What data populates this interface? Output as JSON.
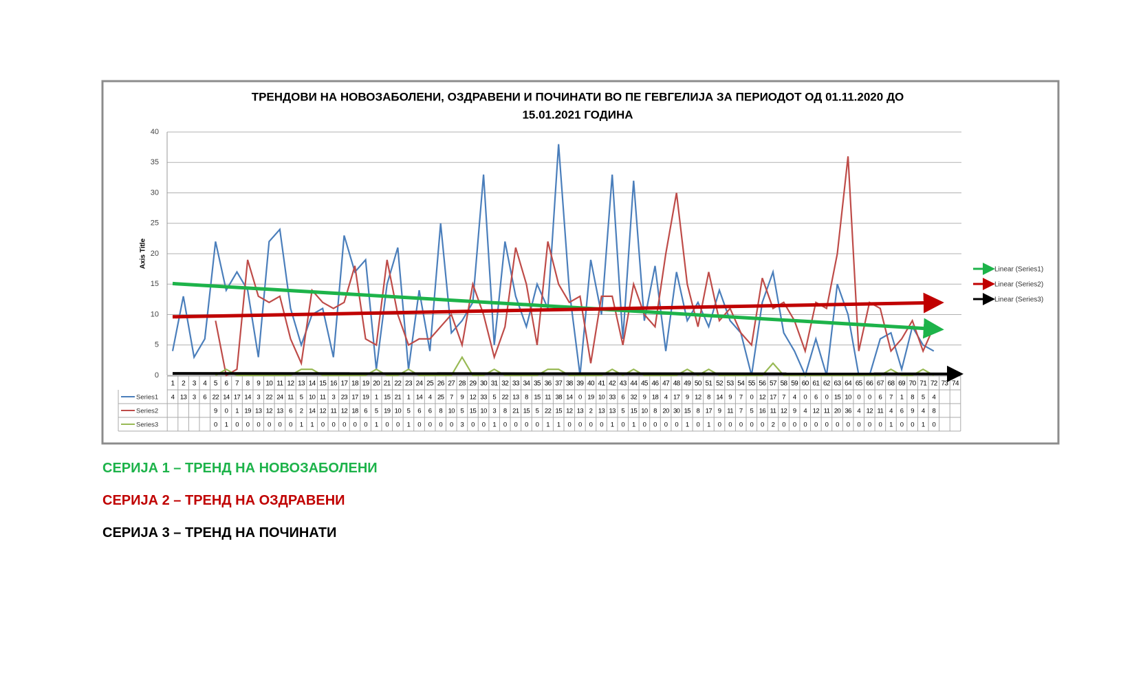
{
  "chart_data": {
    "type": "line",
    "title": "ТРЕНДОВИ  НА НОВОЗАБОЛЕНИ, ОЗДРАВЕНИ И ПОЧИНАТИ ВО ПЕ ГЕВГЕЛИЈА  ЗА ПЕРИОДОТ ОД 01.11.2020 ДО",
    "title_line2": "15.01.2021 ГОДИНА",
    "y_label": "Axis Title",
    "categories": [
      "1",
      "2",
      "3",
      "4",
      "5",
      "6",
      "7",
      "8",
      "9",
      "10",
      "11",
      "12",
      "13",
      "14",
      "15",
      "16",
      "17",
      "18",
      "19",
      "20",
      "21",
      "22",
      "23",
      "24",
      "25",
      "26",
      "27",
      "28",
      "29",
      "30",
      "31",
      "32",
      "33",
      "34",
      "35",
      "36",
      "37",
      "38",
      "39",
      "40",
      "41",
      "42",
      "43",
      "44",
      "45",
      "46",
      "47",
      "48",
      "49",
      "50",
      "51",
      "52",
      "53",
      "54",
      "55",
      "56",
      "57",
      "58",
      "59",
      "60",
      "61",
      "62",
      "63",
      "64",
      "65",
      "66",
      "67",
      "68",
      "69",
      "70",
      "71",
      "72",
      "73",
      "74"
    ],
    "series": [
      {
        "name": "Series1",
        "color": "#4a7ebb",
        "values": [
          4,
          13,
          3,
          6,
          22,
          14,
          17,
          14,
          3,
          22,
          24,
          11,
          5,
          10,
          11,
          3,
          23,
          17,
          19,
          1,
          15,
          21,
          1,
          14,
          4,
          25,
          7,
          9,
          12,
          33,
          5,
          22,
          13,
          8,
          15,
          11,
          38,
          14,
          0,
          19,
          10,
          33,
          6,
          32,
          9,
          18,
          4,
          17,
          9,
          12,
          8,
          14,
          9,
          7,
          0,
          12,
          17,
          7,
          4,
          0,
          6,
          0,
          15,
          10,
          0,
          0,
          6,
          7,
          1,
          8,
          5,
          4,
          null,
          null
        ]
      },
      {
        "name": "Series2",
        "color": "#be4b48",
        "values": [
          null,
          null,
          null,
          null,
          9,
          0,
          1,
          19,
          13,
          12,
          13,
          6,
          2,
          14,
          12,
          11,
          12,
          18,
          6,
          5,
          19,
          10,
          5,
          6,
          6,
          8,
          10,
          5,
          15,
          10,
          3,
          8,
          21,
          15,
          5,
          22,
          15,
          12,
          13,
          2,
          13,
          13,
          5,
          15,
          10,
          8,
          20,
          30,
          15,
          8,
          17,
          9,
          11,
          7,
          5,
          16,
          11,
          12,
          9,
          4,
          12,
          11,
          20,
          36,
          4,
          12,
          11,
          4,
          6,
          9,
          4,
          8,
          null,
          null
        ]
      },
      {
        "name": "Series3",
        "color": "#98b954",
        "values": [
          null,
          null,
          null,
          null,
          0,
          1,
          0,
          0,
          0,
          0,
          0,
          0,
          1,
          1,
          0,
          0,
          0,
          0,
          0,
          1,
          0,
          0,
          1,
          0,
          0,
          0,
          0,
          3,
          0,
          0,
          1,
          0,
          0,
          0,
          0,
          1,
          1,
          0,
          0,
          0,
          0,
          1,
          0,
          1,
          0,
          0,
          0,
          0,
          1,
          0,
          1,
          0,
          0,
          0,
          0,
          0,
          2,
          0,
          0,
          0,
          0,
          0,
          0,
          0,
          0,
          0,
          0,
          1,
          0,
          0,
          1,
          0,
          null,
          null
        ]
      }
    ],
    "trendlines": [
      {
        "name": "Linear (Series1)",
        "color": "#1db34a",
        "series": 0
      },
      {
        "name": "Linear (Series2)",
        "color": "#c00000",
        "series": 1
      },
      {
        "name": "Linear (Series3)",
        "color": "#000000",
        "series": 2
      }
    ],
    "ylim": [
      0,
      40
    ],
    "yticks": [
      0,
      5,
      10,
      15,
      20,
      25,
      30,
      35,
      40
    ],
    "grid": true
  },
  "notes": [
    {
      "text": "СЕРИЈА 1 – ТРЕНД НА НОВОЗАБОЛЕНИ",
      "color": "#1db34a"
    },
    {
      "text": "СЕРИЈА 2 – ТРЕНД НА ОЗДРАВЕНИ",
      "color": "#c00000"
    },
    {
      "text": "СЕРИЈА 3 – ТРЕНД НА ПОЧИНАТИ",
      "color": "#000000"
    }
  ]
}
